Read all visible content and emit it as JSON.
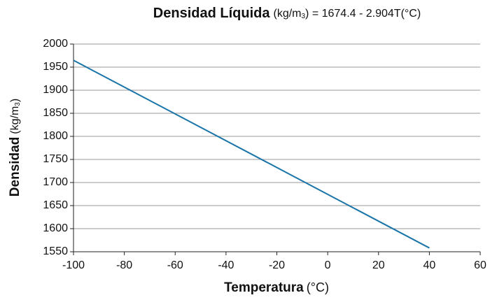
{
  "chart_data": {
    "type": "line",
    "title": {
      "bold": "Densidad Líquida",
      "unit": "(kg/m",
      "sub": "3",
      "tail": ") = 1674.4 - 2.904T(°C)"
    },
    "y_label": {
      "bold": "Densidad",
      "unit": "(kg/m",
      "sub": "3",
      "tail": ")"
    },
    "x_label": {
      "bold": "Temperatura",
      "unit": "(°C)"
    },
    "x": [
      -100,
      40
    ],
    "series": [
      {
        "color": "#1b75a8",
        "values": [
          1964.8,
          1558.24
        ]
      }
    ],
    "xlim": [
      -100,
      60
    ],
    "xticks": [
      -100,
      -80,
      -60,
      -40,
      -20,
      0,
      20,
      40,
      60
    ],
    "ylim": [
      1550,
      2000
    ],
    "yticks": [
      1550,
      1600,
      1650,
      1700,
      1750,
      1800,
      1850,
      1900,
      1950,
      2000
    ],
    "grid": true
  }
}
